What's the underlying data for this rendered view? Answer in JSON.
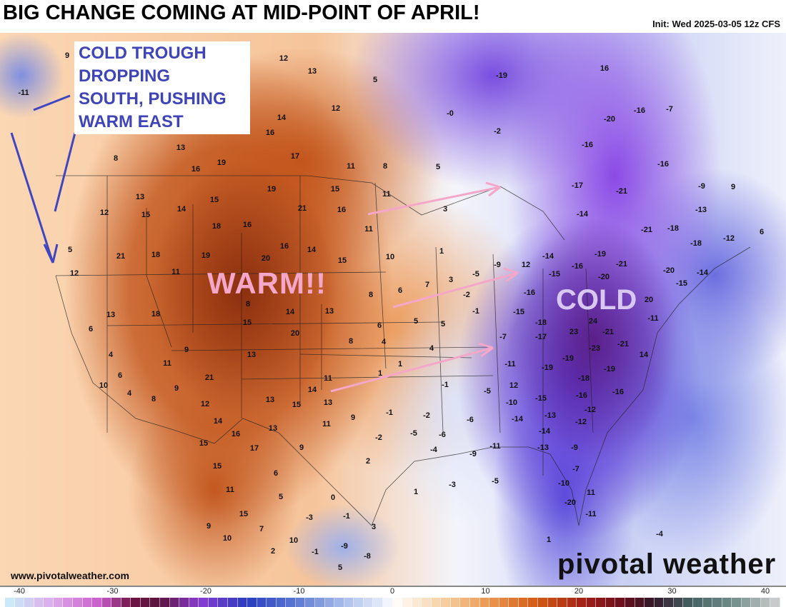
{
  "header": {
    "title": "BIG CHANGE COMING AT MID-POINT OF APRIL!",
    "init": "Init: Wed 2025-03-05 12z CFS"
  },
  "annotations": {
    "note": "COLD TROUGH\nDROPPING\nSOUTH, PUSHING\nWARM EAST",
    "warm": "WARM!!",
    "cold": "COLD",
    "note_color": "#3f44b8",
    "warm_color": "#f4a7c8",
    "cold_color": "#d8c8f2"
  },
  "footer": {
    "site": "www.pivotalweather.com",
    "brand": "pivotal weather"
  },
  "colorbar": {
    "ticks": [
      "-40",
      "-30",
      "-20",
      "-10",
      "0",
      "10",
      "20",
      "30",
      "40"
    ],
    "range": [
      -40,
      40
    ]
  },
  "map_labels": [
    "-11",
    "9",
    "12",
    "13",
    "5",
    "12",
    "16",
    "14",
    "13",
    "16",
    "19",
    "17",
    "11",
    "8",
    "8",
    "5",
    "-0",
    "-2",
    "-19",
    "16",
    "-16",
    "-7",
    "-20",
    "-16",
    "-17",
    "-21",
    "-16",
    "-9",
    "9",
    "-13",
    "-14",
    "-21",
    "-18",
    "-18",
    "-12",
    "6",
    "13",
    "15",
    "14",
    "19",
    "15",
    "21",
    "16",
    "11",
    "12",
    "15",
    "18",
    "16",
    "11",
    "3",
    "21",
    "18",
    "19",
    "16",
    "14",
    "15",
    "10",
    "1",
    "5",
    "12",
    "11",
    "20",
    "8",
    "3",
    "7",
    "-5",
    "-9",
    "12",
    "-14",
    "-15",
    "-16",
    "-19",
    "-21",
    "-20",
    "-14",
    "-20",
    "-15",
    "13",
    "18",
    "14",
    "13",
    "8",
    "6",
    "-2",
    "-1",
    "-16",
    "-15",
    "-18",
    "20",
    "24",
    "23",
    "-21",
    "-11",
    "6",
    "15",
    "20",
    "6",
    "5",
    "5",
    "-17",
    "-23",
    "-21",
    "4",
    "9",
    "8",
    "4",
    "4",
    "-7",
    "14",
    "6",
    "11",
    "13",
    "21",
    "13",
    "11",
    "1",
    "1",
    "-1",
    "-11",
    "-19",
    "-19",
    "-19",
    "10",
    "4",
    "9",
    "8",
    "14",
    "13",
    "15",
    "-5",
    "12",
    "-15",
    "-18",
    "-16",
    "12",
    "14",
    "16",
    "13",
    "11",
    "9",
    "-1",
    "-2",
    "-6",
    "-10",
    "-14",
    "-13",
    "-16",
    "-12",
    "15",
    "17",
    "9",
    "-2",
    "-5",
    "-6",
    "-14",
    "-12",
    "15",
    "6",
    "2",
    "-4",
    "-9",
    "-11",
    "-13",
    "-9",
    "11",
    "5",
    "0",
    "1",
    "-3",
    "-5",
    "-7",
    "-10",
    "-20",
    "11",
    "-11",
    "15",
    "7",
    "-3",
    "-1",
    "3",
    "9",
    "10",
    "10",
    "2",
    "-1",
    "-9",
    "-8",
    "5",
    "-4",
    "1"
  ]
}
